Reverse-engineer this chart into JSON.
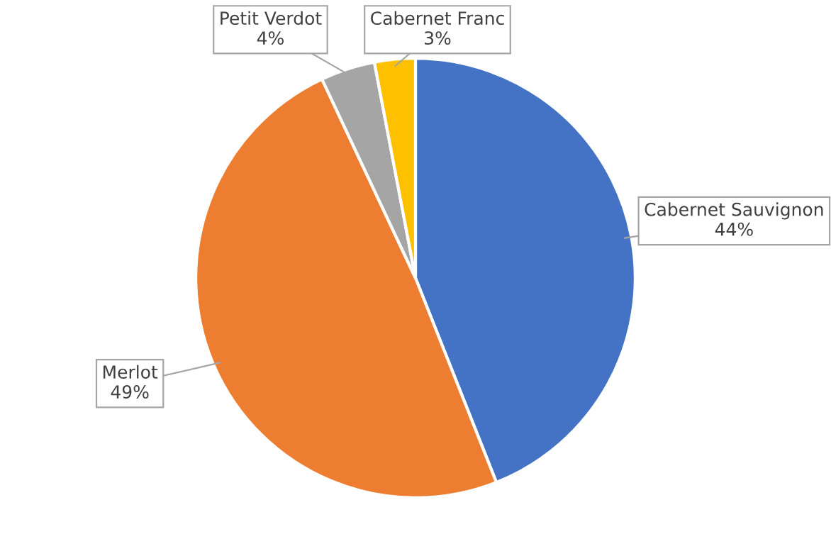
{
  "chart_data": {
    "type": "pie",
    "categories": [
      "Cabernet Sauvignon",
      "Merlot",
      "Petit Verdot",
      "Cabernet Franc"
    ],
    "values": [
      44,
      49,
      4,
      3
    ],
    "value_labels": [
      "44%",
      "49%",
      "4%",
      "3%"
    ],
    "colors": [
      "#4472c4",
      "#ed7d31",
      "#a5a5a5",
      "#ffc000"
    ],
    "legend": false
  }
}
